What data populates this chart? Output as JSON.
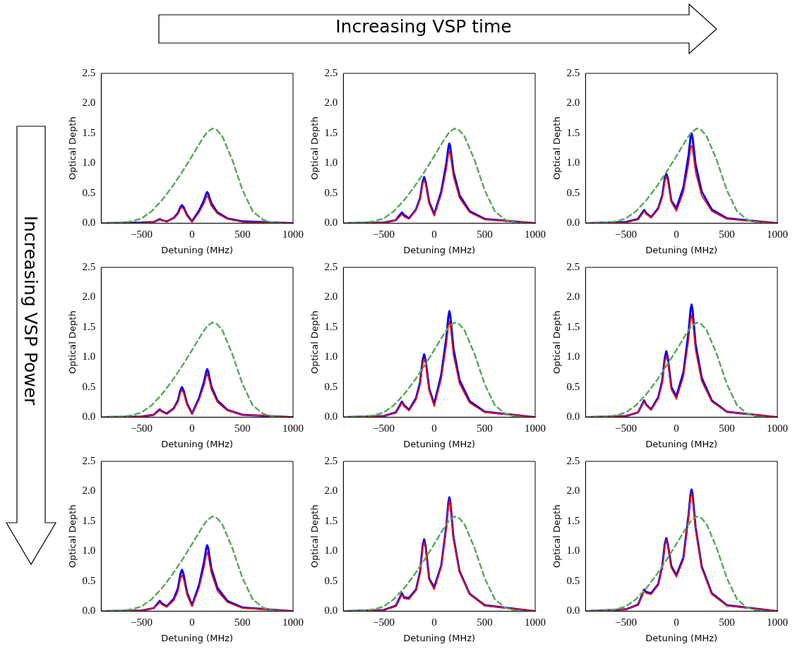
{
  "chart_data": [
    {
      "type": "line",
      "xlabel": "Detuning (MHz)",
      "ylabel": "Optical Depth",
      "annotations": [
        "Increasing VSP time",
        "Increasing VSP Power"
      ],
      "xlim": [
        -900,
        1000
      ],
      "xticks": [
        {
          "value": -500,
          "label": "−500"
        },
        {
          "value": 0,
          "label": "0"
        },
        {
          "value": 500,
          "label": "500"
        },
        {
          "value": 1000,
          "label": "1000"
        }
      ],
      "ylim": [
        0,
        2.5
      ],
      "yticks": [
        {
          "value": 0,
          "label": "0.0"
        },
        {
          "value": 0.5,
          "label": "0.5"
        },
        {
          "value": 1,
          "label": "1.0"
        },
        {
          "value": 1.5,
          "label": "1.5"
        },
        {
          "value": 2,
          "label": "2.0"
        },
        {
          "value": 2.5,
          "label": "2.5"
        }
      ],
      "x": [
        -900,
        -500,
        -380,
        -340,
        -320,
        -300,
        -250,
        -180,
        -140,
        -115,
        -100,
        -85,
        -50,
        0,
        70,
        120,
        140,
        150,
        160,
        190,
        250,
        350,
        500,
        1000
      ],
      "series": [
        {
          "color": "#0000ff",
          "values": [
            0,
            0.01,
            0.02,
            0.05,
            0.07,
            0.05,
            0.03,
            0.09,
            0.17,
            0.27,
            0.3,
            0.27,
            0.14,
            0.03,
            0.21,
            0.39,
            0.49,
            0.52,
            0.49,
            0.34,
            0.18,
            0.08,
            0.03,
            0
          ]
        },
        {
          "color": "#ff0000",
          "values": [
            0,
            0,
            0.02,
            0.05,
            0.06,
            0.05,
            0.03,
            0.08,
            0.15,
            0.24,
            0.27,
            0.24,
            0.12,
            0.02,
            0.18,
            0.34,
            0.43,
            0.45,
            0.43,
            0.29,
            0.16,
            0.07,
            0.02,
            0
          ]
        },
        {
          "color": "#5aaa5a",
          "line_style": "dashed",
          "x": [
            -900,
            -700,
            -600,
            -500,
            -400,
            -300,
            -200,
            -100,
            0,
            100,
            150,
            200,
            250,
            300,
            400,
            500,
            600,
            700,
            800,
            880
          ],
          "values": [
            0,
            0.01,
            0.03,
            0.08,
            0.2,
            0.38,
            0.6,
            0.85,
            1.12,
            1.4,
            1.52,
            1.58,
            1.55,
            1.45,
            1.05,
            0.55,
            0.2,
            0.06,
            0.01,
            0
          ]
        }
      ]
    },
    {
      "type": "line",
      "xlabel": "Detuning (MHz)",
      "ylabel": "Optical Depth",
      "xlim": [
        -900,
        1000
      ],
      "xticks": [
        {
          "value": -500,
          "label": "−500"
        },
        {
          "value": 0,
          "label": "0"
        },
        {
          "value": 500,
          "label": "500"
        },
        {
          "value": 1000,
          "label": "1000"
        }
      ],
      "ylim": [
        0,
        2.5
      ],
      "yticks": [
        {
          "value": 0,
          "label": "0.0"
        },
        {
          "value": 0.5,
          "label": "0.5"
        },
        {
          "value": 1,
          "label": "1.0"
        },
        {
          "value": 1.5,
          "label": "1.5"
        },
        {
          "value": 2,
          "label": "2.0"
        },
        {
          "value": 2.5,
          "label": "2.5"
        }
      ],
      "x": [
        -900,
        -500,
        -380,
        -340,
        -320,
        -300,
        -250,
        -180,
        -140,
        -115,
        -100,
        -85,
        -50,
        0,
        70,
        120,
        140,
        150,
        160,
        190,
        250,
        350,
        500,
        1000
      ],
      "series": [
        {
          "color": "#0000ff",
          "values": [
            0,
            0.01,
            0.05,
            0.14,
            0.18,
            0.14,
            0.08,
            0.23,
            0.42,
            0.69,
            0.77,
            0.69,
            0.35,
            0.15,
            0.53,
            1.0,
            1.26,
            1.33,
            1.26,
            0.86,
            0.47,
            0.2,
            0.07,
            0
          ]
        },
        {
          "color": "#ff0000",
          "values": [
            0,
            0.01,
            0.05,
            0.11,
            0.15,
            0.11,
            0.07,
            0.22,
            0.4,
            0.65,
            0.72,
            0.65,
            0.32,
            0.12,
            0.48,
            0.9,
            1.14,
            1.2,
            1.14,
            0.78,
            0.42,
            0.18,
            0.06,
            0
          ]
        },
        {
          "color": "#5aaa5a",
          "line_style": "dashed",
          "x": [
            -900,
            -700,
            -600,
            -500,
            -400,
            -300,
            -200,
            -100,
            0,
            100,
            150,
            200,
            250,
            300,
            400,
            500,
            600,
            700,
            800,
            880
          ],
          "values": [
            0,
            0.01,
            0.03,
            0.08,
            0.2,
            0.38,
            0.6,
            0.85,
            1.12,
            1.4,
            1.52,
            1.58,
            1.55,
            1.45,
            1.05,
            0.55,
            0.2,
            0.06,
            0.01,
            0
          ]
        }
      ]
    },
    {
      "type": "line",
      "xlabel": "Detuning (MHz)",
      "ylabel": "Optical Depth",
      "xlim": [
        -900,
        1000
      ],
      "xticks": [
        {
          "value": -500,
          "label": "−500"
        },
        {
          "value": 0,
          "label": "0"
        },
        {
          "value": 500,
          "label": "500"
        },
        {
          "value": 1000,
          "label": "1000"
        }
      ],
      "ylim": [
        0,
        2.5
      ],
      "yticks": [
        {
          "value": 0,
          "label": "0.0"
        },
        {
          "value": 0.5,
          "label": "0.5"
        },
        {
          "value": 1,
          "label": "1.0"
        },
        {
          "value": 1.5,
          "label": "1.5"
        },
        {
          "value": 2,
          "label": "2.0"
        },
        {
          "value": 2.5,
          "label": "2.5"
        }
      ],
      "x": [
        -900,
        -500,
        -380,
        -340,
        -320,
        -300,
        -250,
        -180,
        -140,
        -115,
        -100,
        -85,
        -50,
        0,
        70,
        120,
        140,
        150,
        160,
        190,
        250,
        350,
        500,
        1000
      ],
      "series": [
        {
          "color": "#0000ff",
          "values": [
            0,
            0.02,
            0.07,
            0.17,
            0.22,
            0.17,
            0.1,
            0.25,
            0.46,
            0.75,
            0.83,
            0.75,
            0.37,
            0.25,
            0.6,
            1.13,
            1.43,
            1.5,
            1.43,
            0.98,
            0.53,
            0.23,
            0.08,
            0
          ]
        },
        {
          "color": "#ff0000",
          "values": [
            0,
            0.01,
            0.06,
            0.15,
            0.2,
            0.15,
            0.09,
            0.23,
            0.43,
            0.7,
            0.78,
            0.7,
            0.35,
            0.2,
            0.52,
            0.98,
            1.24,
            1.3,
            1.24,
            0.85,
            0.46,
            0.2,
            0.07,
            0
          ]
        },
        {
          "color": "#5aaa5a",
          "line_style": "dashed",
          "x": [
            -900,
            -700,
            -600,
            -500,
            -400,
            -300,
            -200,
            -100,
            0,
            100,
            150,
            200,
            250,
            300,
            400,
            500,
            600,
            700,
            800,
            880
          ],
          "values": [
            0,
            0.01,
            0.03,
            0.08,
            0.2,
            0.38,
            0.6,
            0.85,
            1.12,
            1.4,
            1.52,
            1.58,
            1.55,
            1.45,
            1.05,
            0.55,
            0.2,
            0.06,
            0.01,
            0
          ]
        }
      ]
    },
    {
      "type": "line",
      "xlabel": "Detuning (MHz)",
      "ylabel": "Optical Depth",
      "xlim": [
        -900,
        1000
      ],
      "xticks": [
        {
          "value": -500,
          "label": "−500"
        },
        {
          "value": 0,
          "label": "0"
        },
        {
          "value": 500,
          "label": "500"
        },
        {
          "value": 1000,
          "label": "1000"
        }
      ],
      "ylim": [
        0,
        2.5
      ],
      "yticks": [
        {
          "value": 0,
          "label": "0.0"
        },
        {
          "value": 0.5,
          "label": "0.5"
        },
        {
          "value": 1,
          "label": "1.0"
        },
        {
          "value": 1.5,
          "label": "1.5"
        },
        {
          "value": 2,
          "label": "2.0"
        },
        {
          "value": 2.5,
          "label": "2.5"
        }
      ],
      "x": [
        -900,
        -500,
        -380,
        -340,
        -320,
        -300,
        -250,
        -180,
        -140,
        -115,
        -100,
        -85,
        -50,
        0,
        70,
        120,
        140,
        150,
        160,
        190,
        250,
        350,
        500,
        1000
      ],
      "series": [
        {
          "color": "#0000ff",
          "values": [
            0,
            0.01,
            0.04,
            0.1,
            0.13,
            0.1,
            0.06,
            0.15,
            0.28,
            0.45,
            0.5,
            0.45,
            0.23,
            0.06,
            0.32,
            0.6,
            0.76,
            0.8,
            0.76,
            0.52,
            0.28,
            0.12,
            0.04,
            0
          ]
        },
        {
          "color": "#ff0000",
          "values": [
            0,
            0.01,
            0.04,
            0.09,
            0.12,
            0.09,
            0.05,
            0.14,
            0.25,
            0.41,
            0.45,
            0.41,
            0.2,
            0.05,
            0.29,
            0.54,
            0.68,
            0.72,
            0.68,
            0.47,
            0.25,
            0.11,
            0.04,
            0
          ]
        },
        {
          "color": "#5aaa5a",
          "line_style": "dashed",
          "x": [
            -900,
            -700,
            -600,
            -500,
            -400,
            -300,
            -200,
            -100,
            0,
            100,
            150,
            200,
            250,
            300,
            400,
            500,
            600,
            700,
            800,
            880
          ],
          "values": [
            0,
            0.01,
            0.03,
            0.08,
            0.2,
            0.38,
            0.6,
            0.85,
            1.12,
            1.4,
            1.52,
            1.58,
            1.55,
            1.45,
            1.05,
            0.55,
            0.2,
            0.06,
            0.01,
            0
          ]
        }
      ]
    },
    {
      "type": "line",
      "xlabel": "Detuning (MHz)",
      "ylabel": "Optical Depth",
      "xlim": [
        -900,
        1000
      ],
      "xticks": [
        {
          "value": -500,
          "label": "−500"
        },
        {
          "value": 0,
          "label": "0"
        },
        {
          "value": 500,
          "label": "500"
        },
        {
          "value": 1000,
          "label": "1000"
        }
      ],
      "ylim": [
        0,
        2.5
      ],
      "yticks": [
        {
          "value": 0,
          "label": "0.0"
        },
        {
          "value": 0.5,
          "label": "0.5"
        },
        {
          "value": 1,
          "label": "1.0"
        },
        {
          "value": 1.5,
          "label": "1.5"
        },
        {
          "value": 2,
          "label": "2.0"
        },
        {
          "value": 2.5,
          "label": "2.5"
        }
      ],
      "x": [
        -900,
        -500,
        -380,
        -340,
        -320,
        -300,
        -250,
        -180,
        -140,
        -115,
        -100,
        -85,
        -50,
        0,
        70,
        120,
        140,
        150,
        160,
        190,
        250,
        350,
        500,
        1000
      ],
      "series": [
        {
          "color": "#0000ff",
          "values": [
            0,
            0.02,
            0.08,
            0.2,
            0.26,
            0.2,
            0.12,
            0.32,
            0.58,
            0.95,
            1.05,
            0.95,
            0.47,
            0.22,
            0.71,
            1.33,
            1.68,
            1.77,
            1.68,
            1.15,
            0.62,
            0.27,
            0.09,
            0
          ]
        },
        {
          "color": "#ff0000",
          "values": [
            0,
            0.02,
            0.07,
            0.18,
            0.24,
            0.18,
            0.11,
            0.29,
            0.54,
            0.88,
            0.98,
            0.88,
            0.44,
            0.18,
            0.64,
            1.2,
            1.52,
            1.6,
            1.52,
            1.04,
            0.56,
            0.24,
            0.08,
            0
          ]
        },
        {
          "color": "#5aaa5a",
          "line_style": "dashed",
          "x": [
            -900,
            -700,
            -600,
            -500,
            -400,
            -300,
            -200,
            -100,
            0,
            100,
            150,
            200,
            250,
            300,
            400,
            500,
            600,
            700,
            800,
            880
          ],
          "values": [
            0,
            0.01,
            0.03,
            0.08,
            0.2,
            0.38,
            0.6,
            0.85,
            1.12,
            1.4,
            1.52,
            1.58,
            1.55,
            1.45,
            1.05,
            0.55,
            0.2,
            0.06,
            0.01,
            0
          ]
        }
      ]
    },
    {
      "type": "line",
      "xlabel": "Detuning (MHz)",
      "ylabel": "Optical Depth",
      "xlim": [
        -900,
        1000
      ],
      "xticks": [
        {
          "value": -500,
          "label": "−500"
        },
        {
          "value": 0,
          "label": "0"
        },
        {
          "value": 500,
          "label": "500"
        },
        {
          "value": 1000,
          "label": "1000"
        }
      ],
      "ylim": [
        0,
        2.5
      ],
      "yticks": [
        {
          "value": 0,
          "label": "0.0"
        },
        {
          "value": 0.5,
          "label": "0.5"
        },
        {
          "value": 1,
          "label": "1.0"
        },
        {
          "value": 1.5,
          "label": "1.5"
        },
        {
          "value": 2,
          "label": "2.0"
        },
        {
          "value": 2.5,
          "label": "2.5"
        }
      ],
      "x": [
        -900,
        -500,
        -380,
        -340,
        -320,
        -300,
        -250,
        -180,
        -140,
        -115,
        -100,
        -85,
        -50,
        0,
        70,
        120,
        140,
        150,
        160,
        190,
        250,
        350,
        500,
        1000
      ],
      "series": [
        {
          "color": "#0000ff",
          "values": [
            0,
            0.02,
            0.08,
            0.21,
            0.28,
            0.21,
            0.13,
            0.33,
            0.61,
            0.99,
            1.1,
            0.99,
            0.5,
            0.35,
            0.75,
            1.41,
            1.79,
            1.88,
            1.79,
            1.22,
            0.66,
            0.28,
            0.09,
            0
          ]
        },
        {
          "color": "#ff0000",
          "values": [
            0,
            0.02,
            0.08,
            0.2,
            0.26,
            0.2,
            0.12,
            0.31,
            0.56,
            0.92,
            1.02,
            0.92,
            0.46,
            0.3,
            0.68,
            1.28,
            1.62,
            1.7,
            1.62,
            1.11,
            0.6,
            0.26,
            0.09,
            0
          ]
        },
        {
          "color": "#5aaa5a",
          "line_style": "dashed",
          "x": [
            -900,
            -700,
            -600,
            -500,
            -400,
            -300,
            -200,
            -100,
            0,
            100,
            150,
            200,
            250,
            300,
            400,
            500,
            600,
            700,
            800,
            880
          ],
          "values": [
            0,
            0.01,
            0.03,
            0.08,
            0.2,
            0.38,
            0.6,
            0.85,
            1.12,
            1.4,
            1.52,
            1.58,
            1.55,
            1.45,
            1.05,
            0.55,
            0.2,
            0.06,
            0.01,
            0
          ]
        }
      ]
    },
    {
      "type": "line",
      "xlabel": "Detuning (MHz)",
      "ylabel": "Optical Depth",
      "xlim": [
        -900,
        1000
      ],
      "xticks": [
        {
          "value": -500,
          "label": "−500"
        },
        {
          "value": 0,
          "label": "0"
        },
        {
          "value": 500,
          "label": "500"
        },
        {
          "value": 1000,
          "label": "1000"
        }
      ],
      "ylim": [
        0,
        2.5
      ],
      "yticks": [
        {
          "value": 0,
          "label": "0.0"
        },
        {
          "value": 0.5,
          "label": "0.5"
        },
        {
          "value": 1,
          "label": "1.0"
        },
        {
          "value": 1.5,
          "label": "1.5"
        },
        {
          "value": 2,
          "label": "2.0"
        },
        {
          "value": 2.5,
          "label": "2.5"
        }
      ],
      "x": [
        -900,
        -500,
        -380,
        -340,
        -320,
        -300,
        -250,
        -180,
        -140,
        -115,
        -100,
        -85,
        -50,
        0,
        70,
        120,
        140,
        150,
        160,
        190,
        250,
        350,
        500,
        1000
      ],
      "series": [
        {
          "color": "#0000ff",
          "values": [
            0,
            0.01,
            0.05,
            0.13,
            0.17,
            0.13,
            0.08,
            0.21,
            0.38,
            0.62,
            0.69,
            0.62,
            0.31,
            0.1,
            0.44,
            0.83,
            1.05,
            1.1,
            1.05,
            0.72,
            0.39,
            0.17,
            0.06,
            0
          ]
        },
        {
          "color": "#ff0000",
          "values": [
            0,
            0.01,
            0.05,
            0.11,
            0.15,
            0.11,
            0.07,
            0.18,
            0.33,
            0.54,
            0.6,
            0.54,
            0.27,
            0.08,
            0.39,
            0.74,
            0.93,
            0.98,
            0.93,
            0.64,
            0.34,
            0.15,
            0.05,
            0
          ]
        },
        {
          "color": "#5aaa5a",
          "line_style": "dashed",
          "x": [
            -900,
            -700,
            -600,
            -500,
            -400,
            -300,
            -200,
            -100,
            0,
            100,
            150,
            200,
            250,
            300,
            400,
            500,
            600,
            700,
            800,
            880
          ],
          "values": [
            0,
            0.01,
            0.03,
            0.08,
            0.2,
            0.38,
            0.6,
            0.85,
            1.12,
            1.4,
            1.52,
            1.58,
            1.55,
            1.45,
            1.05,
            0.55,
            0.2,
            0.06,
            0.01,
            0
          ]
        }
      ]
    },
    {
      "type": "line",
      "xlabel": "Detuning (MHz)",
      "ylabel": "Optical Depth",
      "xlim": [
        -900,
        1000
      ],
      "xticks": [
        {
          "value": -500,
          "label": "−500"
        },
        {
          "value": 0,
          "label": "0"
        },
        {
          "value": 500,
          "label": "500"
        },
        {
          "value": 1000,
          "label": "1000"
        }
      ],
      "ylim": [
        0,
        2.5
      ],
      "yticks": [
        {
          "value": 0,
          "label": "0.0"
        },
        {
          "value": 0.5,
          "label": "0.5"
        },
        {
          "value": 1,
          "label": "1.0"
        },
        {
          "value": 1.5,
          "label": "1.5"
        },
        {
          "value": 2,
          "label": "2.0"
        },
        {
          "value": 2.5,
          "label": "2.5"
        }
      ],
      "x": [
        -900,
        -500,
        -380,
        -340,
        -320,
        -300,
        -250,
        -180,
        -140,
        -115,
        -100,
        -85,
        -50,
        0,
        70,
        120,
        140,
        150,
        160,
        190,
        250,
        350,
        500,
        1000
      ],
      "series": [
        {
          "color": "#0000ff",
          "values": [
            0,
            0.02,
            0.09,
            0.23,
            0.3,
            0.23,
            0.22,
            0.36,
            0.66,
            1.08,
            1.2,
            1.08,
            0.54,
            0.4,
            0.76,
            1.43,
            1.81,
            1.9,
            1.81,
            1.24,
            0.67,
            0.29,
            0.1,
            0
          ]
        },
        {
          "color": "#ff0000",
          "values": [
            0,
            0.02,
            0.08,
            0.21,
            0.28,
            0.21,
            0.2,
            0.35,
            0.63,
            1.04,
            1.15,
            1.04,
            0.52,
            0.36,
            0.74,
            1.39,
            1.76,
            1.85,
            1.76,
            1.2,
            0.65,
            0.28,
            0.09,
            0
          ]
        },
        {
          "color": "#5aaa5a",
          "line_style": "dashed",
          "x": [
            -900,
            -700,
            -600,
            -500,
            -400,
            -300,
            -200,
            -100,
            0,
            100,
            150,
            200,
            250,
            300,
            400,
            500,
            600,
            700,
            800,
            880
          ],
          "values": [
            0,
            0.01,
            0.03,
            0.08,
            0.2,
            0.38,
            0.6,
            0.85,
            1.12,
            1.4,
            1.52,
            1.58,
            1.55,
            1.45,
            1.05,
            0.55,
            0.2,
            0.06,
            0.01,
            0
          ]
        }
      ]
    },
    {
      "type": "line",
      "xlabel": "Detuning (MHz)",
      "ylabel": "Optical Depth",
      "xlim": [
        -900,
        1000
      ],
      "xticks": [
        {
          "value": -500,
          "label": "−500"
        },
        {
          "value": 0,
          "label": "0"
        },
        {
          "value": 500,
          "label": "500"
        },
        {
          "value": 1000,
          "label": "1000"
        }
      ],
      "ylim": [
        0,
        2.5
      ],
      "yticks": [
        {
          "value": 0,
          "label": "0.0"
        },
        {
          "value": 0.5,
          "label": "0.5"
        },
        {
          "value": 1,
          "label": "1.0"
        },
        {
          "value": 1.5,
          "label": "1.5"
        },
        {
          "value": 2,
          "label": "2.0"
        },
        {
          "value": 2.5,
          "label": "2.5"
        }
      ],
      "x": [
        -900,
        -500,
        -380,
        -340,
        -320,
        -300,
        -250,
        -180,
        -140,
        -115,
        -100,
        -85,
        -50,
        0,
        70,
        120,
        140,
        150,
        160,
        190,
        250,
        350,
        500,
        1000
      ],
      "series": [
        {
          "color": "#0000ff",
          "values": [
            0,
            0.03,
            0.11,
            0.27,
            0.36,
            0.32,
            0.3,
            0.45,
            0.75,
            1.12,
            1.22,
            1.12,
            0.75,
            0.6,
            0.9,
            1.6,
            1.95,
            2.03,
            1.95,
            1.4,
            0.75,
            0.3,
            0.1,
            0
          ]
        },
        {
          "color": "#ff0000",
          "values": [
            0,
            0.03,
            0.1,
            0.25,
            0.33,
            0.3,
            0.28,
            0.43,
            0.72,
            1.08,
            1.18,
            1.08,
            0.72,
            0.57,
            0.86,
            1.55,
            1.89,
            1.97,
            1.89,
            1.35,
            0.72,
            0.28,
            0.09,
            0
          ]
        },
        {
          "color": "#5aaa5a",
          "line_style": "dashed",
          "x": [
            -900,
            -700,
            -600,
            -500,
            -400,
            -300,
            -200,
            -100,
            0,
            100,
            150,
            200,
            250,
            300,
            400,
            500,
            600,
            700,
            800,
            880
          ],
          "values": [
            0,
            0.01,
            0.03,
            0.08,
            0.2,
            0.38,
            0.6,
            0.85,
            1.12,
            1.4,
            1.52,
            1.58,
            1.55,
            1.45,
            1.05,
            0.55,
            0.2,
            0.06,
            0.01,
            0
          ]
        }
      ]
    }
  ]
}
